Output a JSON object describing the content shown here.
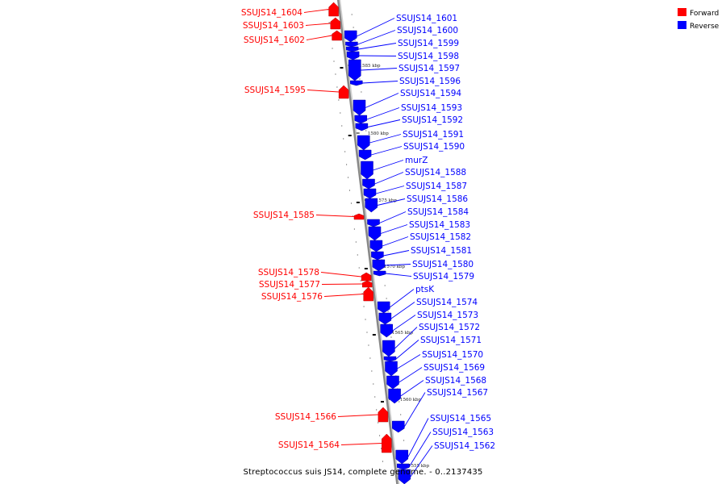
{
  "caption": "Streptococcus suis JS14, complete genome. - 0..2137435",
  "legend": [
    {
      "label": "Forward",
      "color": "#ff0000"
    },
    {
      "label": "Reverse",
      "color": "#0000ff"
    }
  ],
  "colors": {
    "forward": "#ff0000",
    "reverse": "#0000ff",
    "backbone": "#888888"
  },
  "scale_marks": [
    "1585 kbp",
    "1580 kbp",
    "1575 kbp",
    "1570 kbp",
    "1565 kbp",
    "1560 kbp",
    "1555 kbp"
  ],
  "genes": [
    {
      "name": "SSUJS14_1604",
      "strand": "forward"
    },
    {
      "name": "SSUJS14_1603",
      "strand": "forward"
    },
    {
      "name": "SSUJS14_1602",
      "strand": "forward"
    },
    {
      "name": "SSUJS14_1595",
      "strand": "forward"
    },
    {
      "name": "SSUJS14_1585",
      "strand": "forward"
    },
    {
      "name": "SSUJS14_1578",
      "strand": "forward"
    },
    {
      "name": "SSUJS14_1577",
      "strand": "forward"
    },
    {
      "name": "SSUJS14_1576",
      "strand": "forward"
    },
    {
      "name": "SSUJS14_1566",
      "strand": "forward"
    },
    {
      "name": "SSUJS14_1564",
      "strand": "forward"
    },
    {
      "name": "SSUJS14_1601",
      "strand": "reverse"
    },
    {
      "name": "SSUJS14_1600",
      "strand": "reverse"
    },
    {
      "name": "SSUJS14_1599",
      "strand": "reverse"
    },
    {
      "name": "SSUJS14_1598",
      "strand": "reverse"
    },
    {
      "name": "SSUJS14_1597",
      "strand": "reverse"
    },
    {
      "name": "SSUJS14_1596",
      "strand": "reverse"
    },
    {
      "name": "SSUJS14_1594",
      "strand": "reverse"
    },
    {
      "name": "SSUJS14_1593",
      "strand": "reverse"
    },
    {
      "name": "SSUJS14_1592",
      "strand": "reverse"
    },
    {
      "name": "SSUJS14_1591",
      "strand": "reverse"
    },
    {
      "name": "SSUJS14_1590",
      "strand": "reverse"
    },
    {
      "name": "murZ",
      "strand": "reverse"
    },
    {
      "name": "SSUJS14_1588",
      "strand": "reverse"
    },
    {
      "name": "SSUJS14_1587",
      "strand": "reverse"
    },
    {
      "name": "SSUJS14_1586",
      "strand": "reverse"
    },
    {
      "name": "SSUJS14_1584",
      "strand": "reverse"
    },
    {
      "name": "SSUJS14_1583",
      "strand": "reverse"
    },
    {
      "name": "SSUJS14_1582",
      "strand": "reverse"
    },
    {
      "name": "SSUJS14_1581",
      "strand": "reverse"
    },
    {
      "name": "SSUJS14_1580",
      "strand": "reverse"
    },
    {
      "name": "SSUJS14_1579",
      "strand": "reverse"
    },
    {
      "name": "ptsK",
      "strand": "reverse"
    },
    {
      "name": "SSUJS14_1574",
      "strand": "reverse"
    },
    {
      "name": "SSUJS14_1573",
      "strand": "reverse"
    },
    {
      "name": "SSUJS14_1572",
      "strand": "reverse"
    },
    {
      "name": "SSUJS14_1571",
      "strand": "reverse"
    },
    {
      "name": "SSUJS14_1570",
      "strand": "reverse"
    },
    {
      "name": "SSUJS14_1569",
      "strand": "reverse"
    },
    {
      "name": "SSUJS14_1568",
      "strand": "reverse"
    },
    {
      "name": "SSUJS14_1567",
      "strand": "reverse"
    },
    {
      "name": "SSUJS14_1565",
      "strand": "reverse"
    },
    {
      "name": "SSUJS14_1563",
      "strand": "reverse"
    },
    {
      "name": "SSUJS14_1562",
      "strand": "reverse"
    }
  ]
}
